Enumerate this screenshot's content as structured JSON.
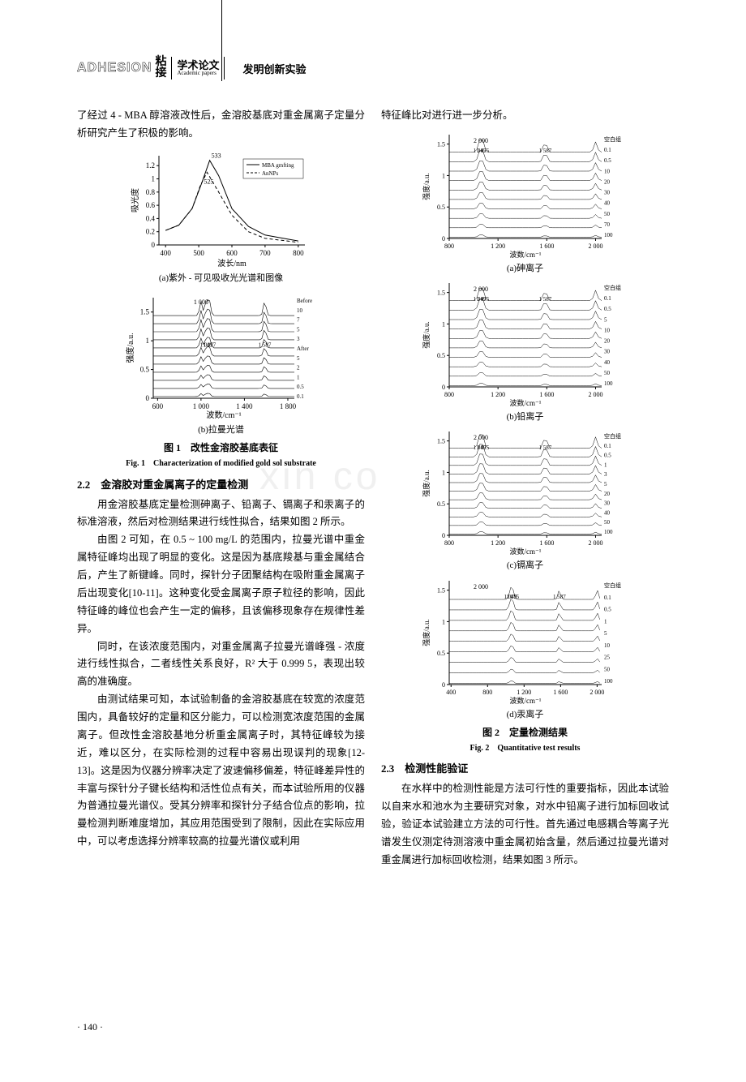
{
  "header": {
    "logo_en": "ADHESION",
    "logo_cn_top": "粘",
    "logo_cn_bottom": "接",
    "section_cn": "学术论文",
    "section_en": "Academic papers",
    "subtitle": "发明创新实验"
  },
  "left_col": {
    "intro": "了经过 4 - MBA 醇溶液改性后，金溶胶基底对重金属离子定量分析研究产生了积极的影响。",
    "fig1a": {
      "type": "line",
      "title": "(a)紫外 - 可见吸收光光谱和图像",
      "xlabel": "波长/nm",
      "ylabel": "吸光度",
      "xlim": [
        380,
        820
      ],
      "ylim": [
        0,
        1.35
      ],
      "xticks": [
        400,
        500,
        600,
        700,
        800
      ],
      "yticks": [
        0,
        0.2,
        0.4,
        0.6,
        0.8,
        1.0,
        1.2
      ],
      "legend": [
        "MBA gmfting",
        "AnNPs"
      ],
      "peak_labels": [
        "525",
        "533"
      ],
      "series": [
        {
          "color": "#000000",
          "dash": "none",
          "pts": [
            [
              400,
              0.22
            ],
            [
              440,
              0.3
            ],
            [
              480,
              0.55
            ],
            [
              510,
              0.95
            ],
            [
              533,
              1.28
            ],
            [
              560,
              1.05
            ],
            [
              600,
              0.55
            ],
            [
              650,
              0.28
            ],
            [
              700,
              0.15
            ],
            [
              800,
              0.06
            ]
          ]
        },
        {
          "color": "#000000",
          "dash": "4,3",
          "pts": [
            [
              400,
              0.22
            ],
            [
              440,
              0.3
            ],
            [
              480,
              0.55
            ],
            [
              505,
              0.9
            ],
            [
              525,
              1.1
            ],
            [
              560,
              0.8
            ],
            [
              600,
              0.45
            ],
            [
              650,
              0.2
            ],
            [
              700,
              0.1
            ],
            [
              800,
              0.04
            ]
          ]
        }
      ],
      "bg": "#ffffff",
      "grid": "#e0e0e0"
    },
    "fig1b": {
      "type": "line-multi",
      "title": "(b)拉曼光谱",
      "xlabel": "波数/cm⁻¹",
      "ylabel": "强度/a.u.",
      "xlim": [
        560,
        1860
      ],
      "ylim": [
        0,
        1.75
      ],
      "xticks": [
        600,
        1000,
        1400,
        1800
      ],
      "yticks": [
        0,
        0.5,
        1.0,
        1.5
      ],
      "peak_labels": [
        "1 049",
        "1 077",
        "1 587"
      ],
      "right_labels": [
        "Before",
        "10",
        "7",
        "5",
        "3",
        "After",
        "5",
        "2",
        "1",
        "0.5",
        "0.1"
      ],
      "top_label": "1 000",
      "line_count": 11,
      "bg": "#ffffff"
    },
    "fig1_caption_cn": "图 1　改性金溶胶基底表征",
    "fig1_caption_en": "Fig. 1　Characterization of modified gold sol substrate",
    "sec22_heading": "2.2　金溶胶对重金属离子的定量检测",
    "p22_1": "用金溶胶基底定量检测砷离子、铅离子、镉离子和汞离子的标准溶液，然后对检测结果进行线性拟合，结果如图 2 所示。",
    "p22_2": "由图 2 可知，在 0.5 ~ 100 mg/L 的范围内，拉曼光谱中重金属特征峰均出现了明显的变化。这是因为基底羧基与重金属结合后，产生了新键峰。同时，探针分子团聚结构在吸附重金属离子后出现变化[10-11]。这种变化受金属离子原子粒径的影响，因此特征峰的峰位也会产生一定的偏移，且该偏移现象存在规律性差异。",
    "p22_3": "同时，在该浓度范围内，对重金属离子拉曼光谱峰强 - 浓度进行线性拟合，二者线性关系良好，R² 大于 0.999 5，表现出较高的准确度。",
    "p22_4": "由测试结果可知，本试验制备的金溶胶基底在较宽的浓度范围内，具备较好的定量和区分能力，可以检测宽浓度范围的金属离子。但改性金溶胶基地分析重金属离子时，其特征峰较为接近，难以区分，在实际检测的过程中容易出现误判的现象[12-13]。这是因为仪器分辨率决定了波速偏移偏差，特征峰差异性的丰富与探针分子键长结构和活性位点有关，而本试验所用的仪器为普通拉曼光谱仪。受其分辨率和探针分子结合位点的影响，拉曼检测判断难度增加，其应用范围受到了限制，因此在实际应用中，可以考虑选择分辨率较高的拉曼光谱仪或利用"
  },
  "right_col": {
    "cont": "特征峰比对进行进一步分析。",
    "fig2_panels": [
      {
        "key": "a",
        "label": "(a)砷离子",
        "xlim": [
          800,
          2050
        ],
        "xticks": [
          800,
          1200,
          1600,
          2000
        ],
        "peaks": [
          "2 000",
          "1 045",
          "1 075",
          "1 587"
        ],
        "rlabels": [
          "100",
          "70",
          "50",
          "40",
          "30",
          "20",
          "10",
          "0.5",
          "0.1",
          "空白组"
        ]
      },
      {
        "key": "b",
        "label": "(b)铅离子",
        "xlim": [
          800,
          2050
        ],
        "xticks": [
          800,
          1200,
          1600,
          2000
        ],
        "peaks": [
          "2 000",
          "1 049",
          "1 075",
          "1 587"
        ],
        "rlabels": [
          "100",
          "50",
          "40",
          "30",
          "20",
          "10",
          "5",
          "0.5",
          "0.1",
          "空白组"
        ]
      },
      {
        "key": "c",
        "label": "(c)镉离子",
        "xlim": [
          800,
          2050
        ],
        "xticks": [
          800,
          1200,
          1600,
          2000
        ],
        "peaks": [
          "2 000",
          "1 049",
          "1 075",
          "1 587"
        ],
        "rlabels": [
          "100",
          "50",
          "40",
          "30",
          "20",
          "5",
          "3",
          "1",
          "0.5",
          "0.1",
          "空白组"
        ]
      },
      {
        "key": "d",
        "label": "(d)汞离子",
        "xlim": [
          380,
          2050
        ],
        "xticks": [
          400,
          800,
          1200,
          1600,
          2000
        ],
        "peaks": [
          "2 000",
          "1 049",
          "1 075",
          "1 587"
        ],
        "rlabels": [
          "100",
          "50",
          "25",
          "10",
          "5",
          "1",
          "0.5",
          "0.1",
          "空白组"
        ]
      }
    ],
    "fig2_ylabel": "强度/a.u.",
    "fig2_xlabel": "波数/cm⁻¹",
    "fig2_ylim": [
      0,
      1.65
    ],
    "fig2_yticks": [
      0,
      0.5,
      1.0,
      1.5
    ],
    "fig2_caption_cn": "图 2　定量检测结果",
    "fig2_caption_en": "Fig. 2　Quantitative test results",
    "sec23_heading": "2.3　检测性能验证",
    "p23_1": "在水样中的检测性能是方法可行性的重要指标，因此本试验以自来水和池水为主要研究对象，对水中铅离子进行加标回收试验，验证本试验建立方法的可行性。首先通过电感耦合等离子光谱发生仪测定待测溶液中重金属初始含量，然后通过拉曼光谱对重金属进行加标回收检测，结果如图 3 所示。"
  },
  "page_number": "· 140 ·",
  "watermark": "xin   co",
  "colors": {
    "text": "#000000",
    "axis": "#000000",
    "bg": "#ffffff",
    "watermark": "#f0f0f0"
  }
}
